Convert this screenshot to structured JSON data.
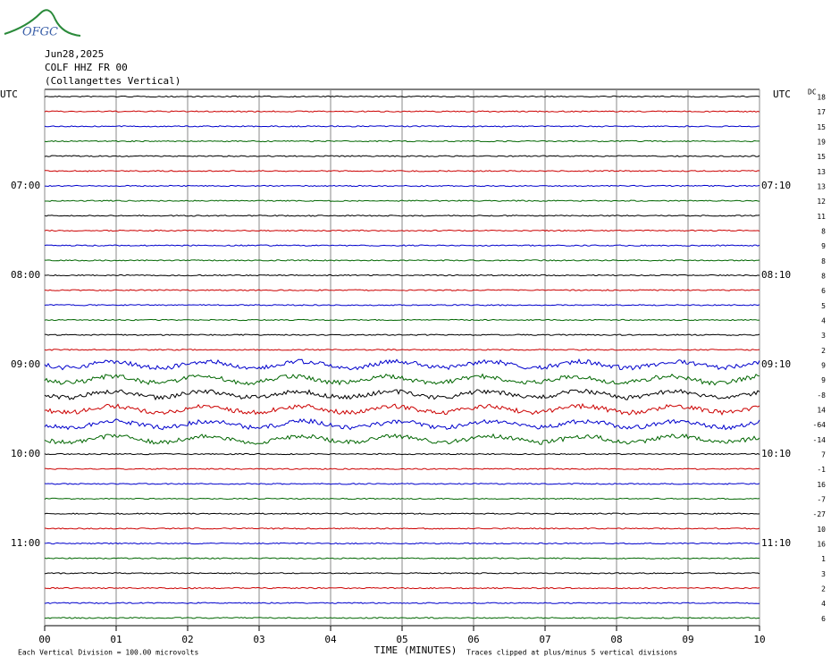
{
  "logo": "OFGC",
  "header": {
    "date": "Jun28,2025",
    "station": "COLF HHZ FR 00",
    "site": "(Collangettes Vertical)"
  },
  "left_header": "UTC",
  "right_header": "UTC",
  "dc_header": "DC",
  "left_times": [
    null,
    null,
    null,
    null,
    null,
    null,
    "07:00",
    null,
    null,
    null,
    null,
    null,
    "08:00",
    null,
    null,
    null,
    null,
    null,
    "09:00",
    null,
    null,
    null,
    null,
    null,
    "10:00",
    null,
    null,
    null,
    null,
    null,
    "11:00",
    null,
    null,
    null,
    null,
    null
  ],
  "right_times": [
    null,
    null,
    null,
    null,
    null,
    null,
    "07:10",
    null,
    null,
    null,
    null,
    null,
    "08:10",
    null,
    null,
    null,
    null,
    null,
    "09:10",
    null,
    null,
    null,
    null,
    null,
    "10:10",
    null,
    null,
    null,
    null,
    null,
    "11:10",
    null,
    null,
    null,
    null,
    null
  ],
  "dc_offsets": [
    18,
    17,
    15,
    19,
    15,
    13,
    13,
    12,
    11,
    8,
    9,
    8,
    8,
    6,
    5,
    4,
    3,
    2,
    9,
    9,
    -8,
    14,
    -64,
    -14,
    7,
    -1,
    16,
    -7,
    -27,
    10,
    16,
    1,
    3,
    2,
    4,
    6
  ],
  "trace_colors": [
    "#000000",
    "#cc0000",
    "#0000cc",
    "#006600"
  ],
  "x_ticks": [
    "00",
    "01",
    "02",
    "03",
    "04",
    "05",
    "06",
    "07",
    "08",
    "09",
    "10"
  ],
  "x_label": "TIME (MINUTES)",
  "footer_left": "Each Vertical Division =  100.00 microvolts",
  "footer_right": "Traces clipped at plus/minus 5 vertical divisions"
}
